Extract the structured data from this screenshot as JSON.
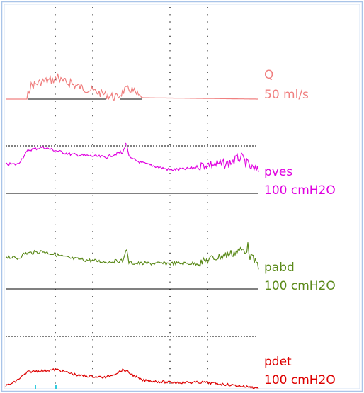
{
  "channels": [
    {
      "name": "Q",
      "scale": "50 ml/s"
    },
    {
      "name": "pves",
      "scale": "100 cmH2O"
    },
    {
      "name": "pabd",
      "scale": "100 cmH2O"
    },
    {
      "name": "pdet",
      "scale": "100 cmH2O"
    }
  ]
}
